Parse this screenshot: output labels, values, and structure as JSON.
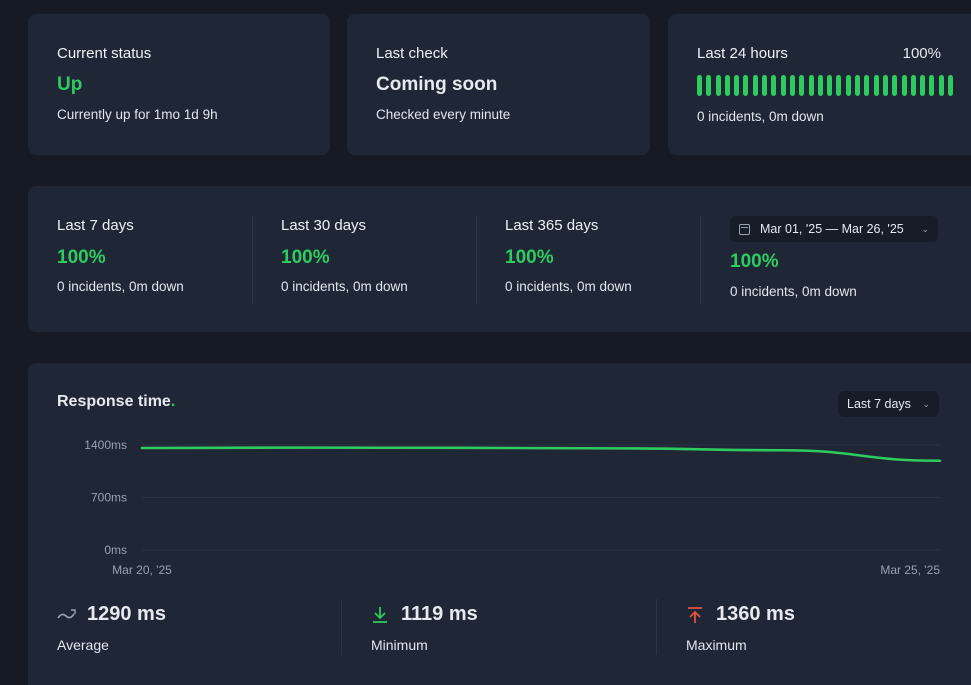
{
  "status_card": {
    "label": "Current status",
    "value": "Up",
    "sub": "Currently up for 1mo 1d 9h"
  },
  "check_card": {
    "label": "Last check",
    "value": "Coming soon",
    "sub": "Checked every minute"
  },
  "day_card": {
    "label": "Last 24 hours",
    "percent": "100%",
    "sub": "0 incidents, 0m down",
    "bar_count": 28,
    "bar_color": "#2ecc5e"
  },
  "periods": [
    {
      "label": "Last 7 days",
      "percent": "100%",
      "sub": "0 incidents, 0m down"
    },
    {
      "label": "Last 30 days",
      "percent": "100%",
      "sub": "0 incidents, 0m down"
    },
    {
      "label": "Last 365 days",
      "percent": "100%",
      "sub": "0 incidents, 0m down"
    },
    {
      "label": "Mar 01, '25 — Mar 26, '25",
      "percent": "100%",
      "sub": "0 incidents, 0m down"
    }
  ],
  "response": {
    "title": "Response time",
    "title_dot": ".",
    "range": "Last 7 days",
    "stats": [
      {
        "value": "1290 ms",
        "label": "Average",
        "icon": "average-icon"
      },
      {
        "value": "1119 ms",
        "label": "Minimum",
        "icon": "arrow-down-icon"
      },
      {
        "value": "1360 ms",
        "label": "Maximum",
        "icon": "arrow-up-icon"
      }
    ]
  },
  "colors": {
    "accent": "#2ecc5e",
    "danger": "#e5533d",
    "card": "#1f2636",
    "background": "#151a25"
  },
  "chart_data": {
    "type": "line",
    "x_ticks": [
      "Mar 20, '25",
      "Mar 25, '25"
    ],
    "y_ticks": [
      "1400ms",
      "700ms",
      "0ms"
    ],
    "ylim": [
      0,
      1400
    ],
    "grid": true,
    "series": [
      {
        "x": [
          "Mar 20, '25",
          "Mar 21, '25",
          "Mar 22, '25",
          "Mar 23, '25",
          "Mar 24, '25",
          "Mar 25, '25"
        ],
        "values": [
          1360,
          1365,
          1362,
          1355,
          1330,
          1190
        ]
      }
    ]
  }
}
